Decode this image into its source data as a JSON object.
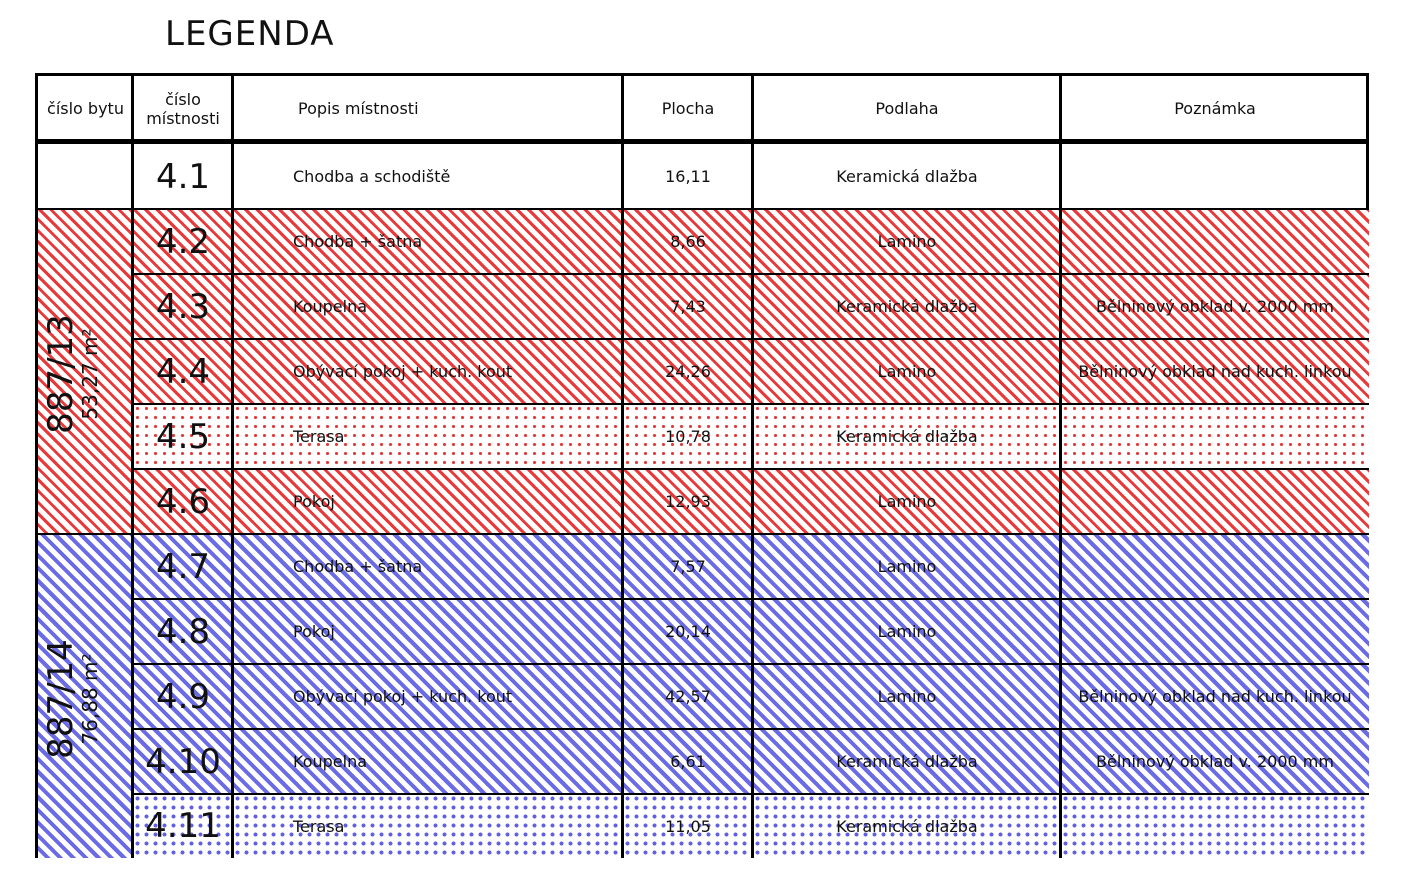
{
  "title": "LEGENDA",
  "headers": {
    "apartment": "číslo bytu",
    "room": "číslo místnosti",
    "description": "Popis místnosti",
    "area": "Plocha",
    "floor": "Podlaha",
    "note": "Poznámka"
  },
  "apartments": [
    {
      "id": "887/13",
      "area": "53,27 m²",
      "color": "#e83a3a"
    },
    {
      "id": "887/14",
      "area": "76,88 m²",
      "color": "#6b6be6"
    }
  ],
  "rows": [
    {
      "room": "4.1",
      "description": "Chodba a schodiště",
      "area": "16,11",
      "floor": "Keramická dlažba",
      "note": "",
      "pattern": "none"
    },
    {
      "room": "4.2",
      "description": "Chodba + šatna",
      "area": "8,66",
      "floor": "Lamino",
      "note": "",
      "pattern": "red"
    },
    {
      "room": "4.3",
      "description": "Koupelna",
      "area": "7,43",
      "floor": "Keramická dlažba",
      "note": "Bělninový obklad v. 2000 mm",
      "pattern": "red"
    },
    {
      "room": "4.4",
      "description": "Obývací pokoj + kuch. kout",
      "area": "24,26",
      "floor": "Lamino",
      "note": "Bělninový obklad nad kuch. linkou",
      "pattern": "red"
    },
    {
      "room": "4.5",
      "description": "Terasa",
      "area": "10,78",
      "floor": "Keramická dlažba",
      "note": "",
      "pattern": "reddots"
    },
    {
      "room": "4.6",
      "description": "Pokoj",
      "area": "12,93",
      "floor": "Lamino",
      "note": "",
      "pattern": "red"
    },
    {
      "room": "4.7",
      "description": "Chodba + šatna",
      "area": "7,57",
      "floor": "Lamino",
      "note": "",
      "pattern": "blue"
    },
    {
      "room": "4.8",
      "description": "Pokoj",
      "area": "20,14",
      "floor": "Lamino",
      "note": "",
      "pattern": "blue"
    },
    {
      "room": "4.9",
      "description": "Obývací pokoj + kuch. kout",
      "area": "42,57",
      "floor": "Lamino",
      "note": "Bělninový obklad nad kuch. linkou",
      "pattern": "blue"
    },
    {
      "room": "4.10",
      "description": "Koupelna",
      "area": "6,61",
      "floor": "Keramická dlažba",
      "note": "Bělninový obklad v. 2000 mm",
      "pattern": "blue"
    },
    {
      "room": "4.11",
      "description": "Terasa",
      "area": "11,05",
      "floor": "Keramická dlažba",
      "note": "",
      "pattern": "bluedots"
    }
  ]
}
